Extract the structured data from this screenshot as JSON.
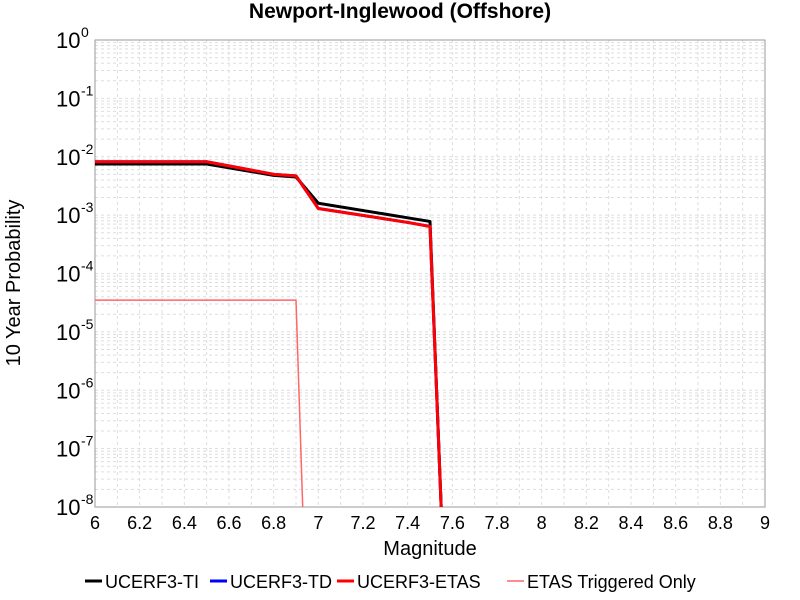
{
  "chart_data": {
    "type": "line",
    "title": "Newport-Inglewood (Offshore)",
    "xlabel": "Magnitude",
    "ylabel": "10 Year Probability",
    "xlim": [
      6,
      9
    ],
    "ylim": [
      1e-08,
      1
    ],
    "yscale": "log",
    "grid": true,
    "legend_position": "bottom",
    "x_ticks": [
      "6",
      "6.2",
      "6.4",
      "6.6",
      "6.8",
      "7",
      "7.2",
      "7.4",
      "7.6",
      "7.8",
      "8",
      "8.2",
      "8.4",
      "8.6",
      "8.8",
      "9"
    ],
    "y_ticks": [
      {
        "base": "10",
        "exp": "0"
      },
      {
        "base": "10",
        "exp": "-1"
      },
      {
        "base": "10",
        "exp": "-2"
      },
      {
        "base": "10",
        "exp": "-3"
      },
      {
        "base": "10",
        "exp": "-4"
      },
      {
        "base": "10",
        "exp": "-5"
      },
      {
        "base": "10",
        "exp": "-6"
      },
      {
        "base": "10",
        "exp": "-7"
      },
      {
        "base": "10",
        "exp": "-8"
      }
    ],
    "series": [
      {
        "name": "UCERF3-TI",
        "color": "#000000",
        "width": 3,
        "points": [
          [
            6.0,
            0.0075
          ],
          [
            6.5,
            0.0075
          ],
          [
            6.8,
            0.0048
          ],
          [
            6.9,
            0.0045
          ],
          [
            7.0,
            0.0016
          ],
          [
            7.4,
            0.0009
          ],
          [
            7.5,
            0.00078
          ],
          [
            7.55,
            1e-08
          ]
        ]
      },
      {
        "name": "UCERF3-TD",
        "color": "#0000ff",
        "width": 3,
        "points": [
          [
            6.0,
            0.0082
          ],
          [
            6.5,
            0.0082
          ],
          [
            6.8,
            0.005
          ],
          [
            6.9,
            0.0047
          ],
          [
            7.0,
            0.0013
          ],
          [
            7.4,
            0.00075
          ],
          [
            7.5,
            0.00064
          ],
          [
            7.55,
            1e-08
          ]
        ]
      },
      {
        "name": "UCERF3-ETAS",
        "color": "#ff0000",
        "width": 3,
        "points": [
          [
            6.0,
            0.0082
          ],
          [
            6.5,
            0.0082
          ],
          [
            6.8,
            0.005
          ],
          [
            6.9,
            0.0047
          ],
          [
            7.0,
            0.0013
          ],
          [
            7.4,
            0.00075
          ],
          [
            7.5,
            0.00064
          ],
          [
            7.55,
            1e-08
          ]
        ]
      },
      {
        "name": "ETAS Triggered Only",
        "color": "#ff6666",
        "width": 1.5,
        "points": [
          [
            6.0,
            3.5e-05
          ],
          [
            6.9,
            3.5e-05
          ],
          [
            6.93,
            1e-08
          ]
        ]
      }
    ]
  }
}
